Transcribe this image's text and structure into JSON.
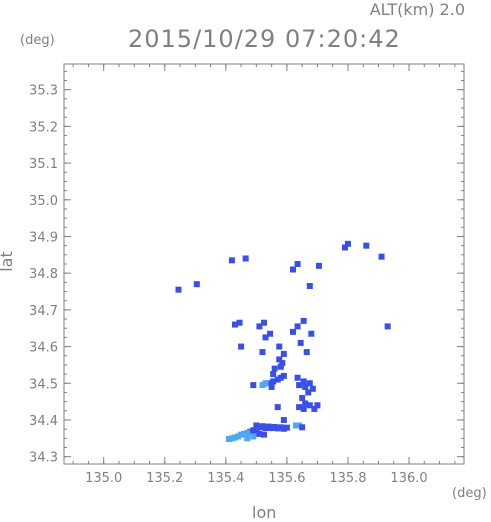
{
  "header": {
    "alt_label": "ALT(km) 2.0",
    "title": "2015/10/29 07:20:42"
  },
  "axes": {
    "y_unit": "(deg)",
    "x_unit": "(deg)",
    "xlabel": "lon",
    "ylabel": "lat"
  },
  "chart_data": {
    "type": "scatter",
    "title": "2015/10/29 07:20:42",
    "xlabel": "lon",
    "ylabel": "lat",
    "xlim": [
      134.87,
      136.18
    ],
    "ylim": [
      34.28,
      35.37
    ],
    "xticks": [
      135.0,
      135.2,
      135.4,
      135.6,
      135.8,
      136.0
    ],
    "xtick_labels": [
      "135.0",
      "135.2",
      "135.4",
      "135.6",
      "135.8",
      "136.0"
    ],
    "yticks": [
      34.3,
      34.4,
      34.5,
      34.6,
      34.7,
      34.8,
      34.9,
      35.0,
      35.1,
      35.2,
      35.3
    ],
    "ytick_labels": [
      "34.3",
      "34.4",
      "34.5",
      "34.6",
      "34.7",
      "34.8",
      "34.9",
      "35.0",
      "35.1",
      "35.2",
      "35.3"
    ],
    "grid": false,
    "colors": {
      "strong": "#3a4fe8",
      "weak": "#4fa8f0",
      "axis": "#808080"
    },
    "points": [
      [
        135.245,
        34.755,
        0
      ],
      [
        135.305,
        34.77,
        0
      ],
      [
        135.42,
        34.835,
        0
      ],
      [
        135.465,
        34.84,
        0
      ],
      [
        135.62,
        34.81,
        0
      ],
      [
        135.635,
        34.825,
        0
      ],
      [
        135.675,
        34.765,
        0
      ],
      [
        135.705,
        34.82,
        0
      ],
      [
        135.79,
        34.87,
        0
      ],
      [
        135.8,
        34.88,
        0
      ],
      [
        135.86,
        34.875,
        0
      ],
      [
        135.91,
        34.845,
        0
      ],
      [
        135.93,
        34.655,
        0
      ],
      [
        135.43,
        34.66,
        0
      ],
      [
        135.445,
        34.665,
        0
      ],
      [
        135.45,
        34.6,
        0
      ],
      [
        135.51,
        34.655,
        0
      ],
      [
        135.525,
        34.665,
        0
      ],
      [
        135.53,
        34.625,
        0
      ],
      [
        135.545,
        34.635,
        0
      ],
      [
        135.52,
        34.585,
        0
      ],
      [
        135.575,
        34.6,
        0
      ],
      [
        135.59,
        34.58,
        0
      ],
      [
        135.62,
        34.64,
        0
      ],
      [
        135.635,
        34.655,
        0
      ],
      [
        135.645,
        34.61,
        0
      ],
      [
        135.655,
        34.67,
        0
      ],
      [
        135.665,
        34.585,
        0
      ],
      [
        135.68,
        34.635,
        0
      ],
      [
        135.575,
        34.565,
        0
      ],
      [
        135.585,
        34.555,
        0
      ],
      [
        135.58,
        34.545,
        0
      ],
      [
        135.56,
        34.54,
        0
      ],
      [
        135.555,
        34.525,
        0
      ],
      [
        135.57,
        34.51,
        0
      ],
      [
        135.555,
        34.505,
        0
      ],
      [
        135.54,
        34.5,
        0
      ],
      [
        135.55,
        34.49,
        0
      ],
      [
        135.53,
        34.5,
        1
      ],
      [
        135.52,
        34.495,
        1
      ],
      [
        135.49,
        34.495,
        0
      ],
      [
        135.58,
        34.515,
        0
      ],
      [
        135.59,
        34.52,
        0
      ],
      [
        135.635,
        34.515,
        0
      ],
      [
        135.64,
        34.495,
        0
      ],
      [
        135.655,
        34.505,
        0
      ],
      [
        135.66,
        34.49,
        0
      ],
      [
        135.675,
        34.5,
        0
      ],
      [
        135.685,
        34.485,
        0
      ],
      [
        135.67,
        34.475,
        0
      ],
      [
        135.65,
        34.46,
        0
      ],
      [
        135.66,
        34.445,
        0
      ],
      [
        135.64,
        34.435,
        0
      ],
      [
        135.655,
        34.43,
        0
      ],
      [
        135.675,
        34.44,
        0
      ],
      [
        135.69,
        34.43,
        0
      ],
      [
        135.7,
        34.44,
        0
      ],
      [
        135.57,
        34.435,
        0
      ],
      [
        135.59,
        34.4,
        0
      ],
      [
        135.64,
        34.385,
        1
      ],
      [
        135.65,
        34.38,
        0
      ],
      [
        135.63,
        34.385,
        1
      ],
      [
        135.5,
        34.385,
        0
      ],
      [
        135.51,
        34.38,
        0
      ],
      [
        135.52,
        34.383,
        0
      ],
      [
        135.53,
        34.378,
        0
      ],
      [
        135.54,
        34.382,
        0
      ],
      [
        135.55,
        34.378,
        0
      ],
      [
        135.56,
        34.381,
        0
      ],
      [
        135.57,
        34.377,
        0
      ],
      [
        135.58,
        34.38,
        0
      ],
      [
        135.59,
        34.376,
        0
      ],
      [
        135.6,
        34.379,
        0
      ],
      [
        135.49,
        34.372,
        0
      ],
      [
        135.48,
        34.368,
        0
      ],
      [
        135.47,
        34.365,
        1
      ],
      [
        135.46,
        34.362,
        1
      ],
      [
        135.45,
        34.36,
        1
      ],
      [
        135.44,
        34.355,
        1
      ],
      [
        135.43,
        34.352,
        1
      ],
      [
        135.42,
        34.35,
        1
      ],
      [
        135.41,
        34.348,
        1
      ],
      [
        135.5,
        34.365,
        0
      ],
      [
        135.51,
        34.362,
        0
      ],
      [
        135.525,
        34.36,
        0
      ],
      [
        135.49,
        34.355,
        1
      ],
      [
        135.47,
        34.35,
        1
      ]
    ]
  }
}
